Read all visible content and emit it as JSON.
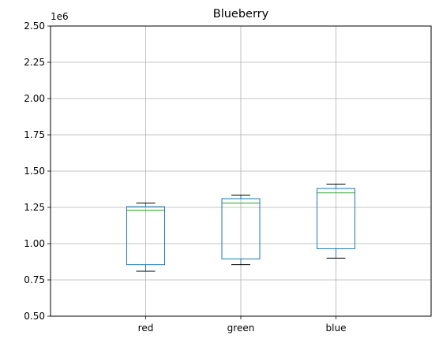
{
  "chart_data": {
    "type": "box",
    "title": "Blueberry",
    "xlabel": "",
    "ylabel": "",
    "y_offset_label": "1e6",
    "ylim": [
      0.5,
      2.5
    ],
    "yticks": [
      0.5,
      0.75,
      1.0,
      1.25,
      1.5,
      1.75,
      2.0,
      2.25,
      2.5
    ],
    "ytick_labels": [
      "0.50",
      "0.75",
      "1.00",
      "1.25",
      "1.50",
      "1.75",
      "2.00",
      "2.25",
      "2.50"
    ],
    "grid": true,
    "categories": [
      "red",
      "green",
      "blue"
    ],
    "boxes": [
      {
        "whisker_low": 0.81,
        "q1": 0.855,
        "median": 1.23,
        "q3": 1.255,
        "whisker_high": 1.28
      },
      {
        "whisker_low": 0.855,
        "q1": 0.895,
        "median": 1.28,
        "q3": 1.31,
        "whisker_high": 1.335
      },
      {
        "whisker_low": 0.9,
        "q1": 0.965,
        "median": 1.35,
        "q3": 1.38,
        "whisker_high": 1.41
      }
    ],
    "colors": {
      "box": "#1f77b4",
      "median": "#2ca02c",
      "whisker": "#000000",
      "grid": "#b0b0b0"
    }
  }
}
